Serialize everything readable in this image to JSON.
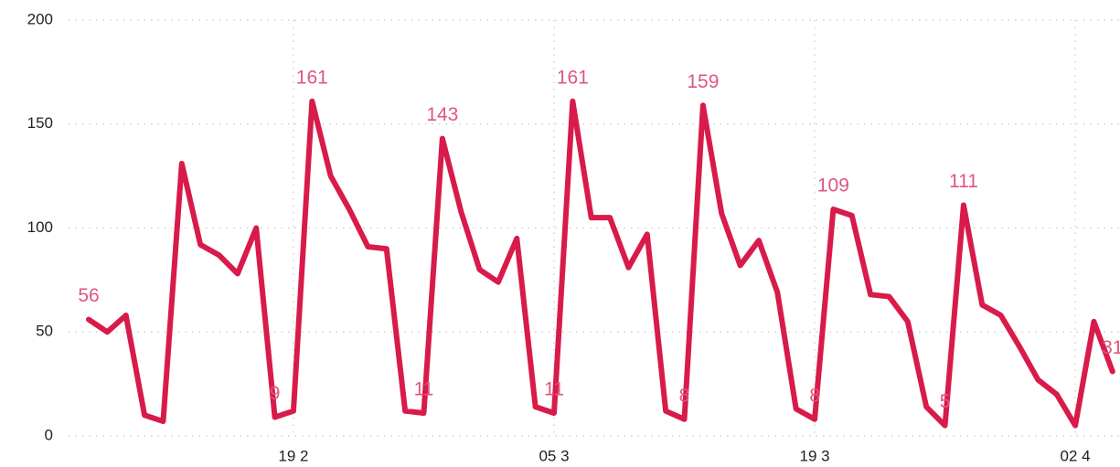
{
  "chart_data": {
    "type": "line",
    "categories": [
      null,
      null,
      null,
      null,
      null,
      null,
      null,
      null,
      null,
      null,
      null,
      "19 2",
      null,
      null,
      null,
      null,
      null,
      null,
      null,
      null,
      null,
      null,
      null,
      null,
      null,
      "05 3",
      null,
      null,
      null,
      null,
      null,
      null,
      null,
      null,
      null,
      null,
      null,
      null,
      null,
      "19 3",
      null,
      null,
      null,
      null,
      null,
      null,
      null,
      null,
      null,
      null,
      null,
      null,
      null,
      "02 4",
      null,
      null
    ],
    "series": [
      {
        "name": null,
        "color": "#d81b4a",
        "values": [
          56,
          50,
          58,
          10,
          7,
          131,
          92,
          87,
          78,
          100,
          9,
          12,
          161,
          125,
          109,
          91,
          90,
          12,
          11,
          143,
          108,
          80,
          74,
          95,
          14,
          11,
          161,
          105,
          105,
          81,
          97,
          12,
          8,
          159,
          107,
          82,
          94,
          69,
          13,
          8,
          109,
          106,
          68,
          67,
          55,
          14,
          5,
          111,
          63,
          58,
          43,
          27,
          20,
          5,
          55,
          31
        ],
        "value_labels": [
          "56",
          null,
          null,
          null,
          null,
          null,
          null,
          null,
          null,
          null,
          "9",
          null,
          "161",
          null,
          null,
          null,
          null,
          null,
          "11",
          "143",
          null,
          null,
          null,
          null,
          null,
          "11",
          "161",
          null,
          null,
          null,
          null,
          null,
          "8",
          "159",
          null,
          null,
          null,
          null,
          null,
          "8",
          "109",
          null,
          null,
          null,
          null,
          null,
          "5",
          "111",
          null,
          null,
          null,
          null,
          null,
          null,
          null,
          "31"
        ]
      }
    ],
    "ylim": [
      0,
      200
    ],
    "yticks": [
      0,
      50,
      100,
      150,
      200
    ],
    "grid": true
  }
}
